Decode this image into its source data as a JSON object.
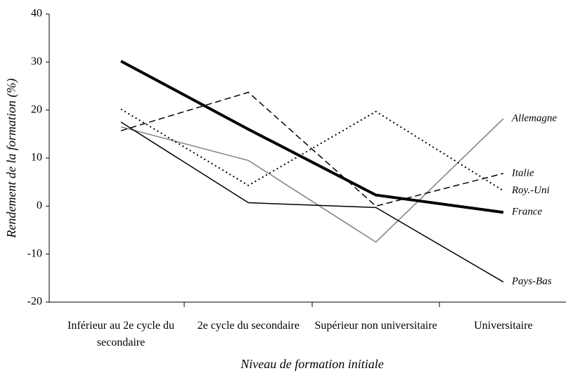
{
  "chart_data": {
    "type": "line",
    "categories": [
      "Inférieur au 2e cycle du secondaire",
      "2e cycle du secondaire",
      "Supérieur non universitaire",
      "Universitaire"
    ],
    "series": [
      {
        "name": "Allemagne",
        "color": "#808080",
        "style": "solid",
        "values": [
          16.5,
          9.5,
          -7.5,
          18.2
        ]
      },
      {
        "name": "Italie",
        "color": "#000000",
        "style": "dashed",
        "values": [
          15.7,
          23.7,
          0,
          6.8
        ]
      },
      {
        "name": "Roy.-Uni",
        "color": "#000000",
        "style": "dotted",
        "values": [
          20.2,
          4.3,
          19.7,
          3.2
        ]
      },
      {
        "name": "France",
        "color": "#000000",
        "style": "thick",
        "values": [
          30.2,
          16,
          2.3,
          -1.3
        ]
      },
      {
        "name": "Pays-Bas",
        "color": "#000000",
        "style": "solid",
        "values": [
          17.5,
          0.7,
          -0.3,
          -15.8
        ]
      }
    ],
    "x_label": "Niveau de formation initiale",
    "y_label": "Rendement de la formation (%)",
    "ylim": [
      -20,
      40
    ],
    "yticks": [
      -20,
      -10,
      0,
      10,
      20,
      30,
      40
    ]
  }
}
